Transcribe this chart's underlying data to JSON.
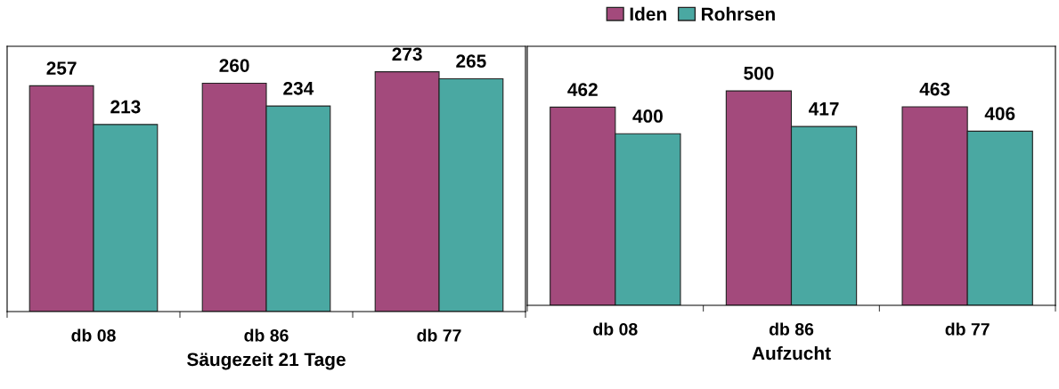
{
  "chart_data": [
    {
      "type": "bar",
      "xlabel": "Säugezeit 21 Tage",
      "categories": [
        "db 08",
        "db 86",
        "db 77"
      ],
      "ylim": [
        0,
        302
      ],
      "tick_labels": "x",
      "data_labels": true,
      "grid": false,
      "legend": "top",
      "series": [
        {
          "name": "Iden",
          "color": "#a34a7c",
          "values": [
            257,
            260,
            273
          ]
        },
        {
          "name": "Rohrsen",
          "color": "#4aa8a2",
          "values": [
            213,
            234,
            265
          ]
        }
      ]
    },
    {
      "type": "bar",
      "xlabel": "Aufzucht",
      "categories": [
        "db 08",
        "db 86",
        "db 77"
      ],
      "ylim": [
        0,
        604
      ],
      "tick_labels": "x",
      "data_labels": true,
      "grid": false,
      "series": [
        {
          "color": "#a34a7c",
          "values": [
            462,
            500,
            463
          ]
        },
        {
          "color": "#4aa8a2",
          "values": [
            400,
            417,
            406
          ]
        }
      ]
    }
  ]
}
